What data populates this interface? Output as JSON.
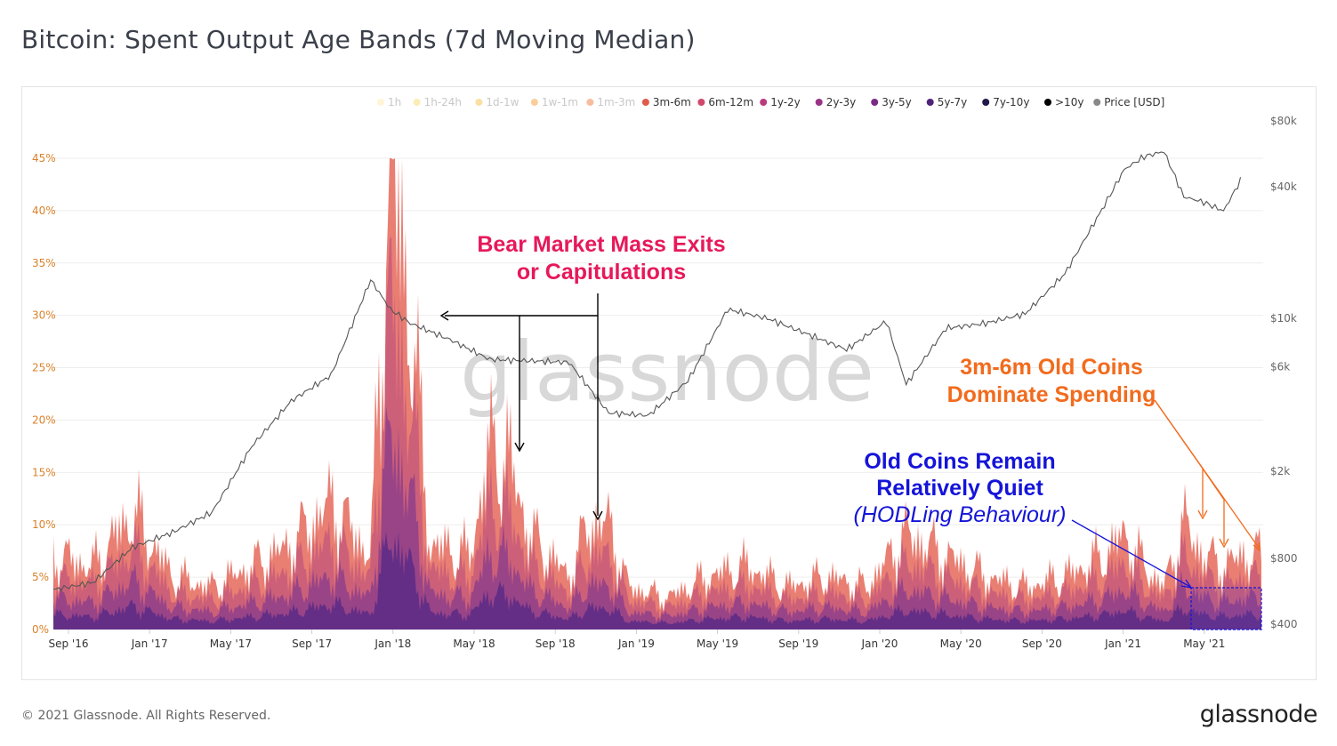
{
  "title": "Bitcoin: Spent Output Age Bands (7d Moving Median)",
  "footer": {
    "copyright": "© 2021 Glassnode. All Rights Reserved.",
    "brand": "glassnode"
  },
  "watermark": "glassnode",
  "colors": {
    "price_line": "#555555",
    "red_annotation": "#e6195a",
    "orange_annotation": "#f26b1d",
    "blue_annotation": "#1414d9",
    "left_tick": "#d9822b",
    "right_tick": "#666666",
    "area_outer": "#e8776a",
    "area_mid": "#c85a7a",
    "area_inner": "#8f3f8a",
    "area_core": "#5a2a86"
  },
  "annotations": {
    "bear_line1": "Bear Market Mass Exits",
    "bear_line2": "or Capitulations",
    "orange_line1": "3m-6m Old Coins",
    "orange_line2": "Dominate Spending",
    "blue_line1": "Old Coins Remain",
    "blue_line2": "Relatively Quiet",
    "blue_line3": "(HODLing Behaviour)"
  },
  "chart_data": {
    "type": "area",
    "title": "Bitcoin: Spent Output Age Bands (7d Moving Median)",
    "legend_position": "top-right",
    "legend": [
      {
        "label": "1h",
        "color": "#fde9a6",
        "faded": true
      },
      {
        "label": "1h-24h",
        "color": "#f7d75a",
        "faded": true
      },
      {
        "label": "1d-1w",
        "color": "#f6b733",
        "faded": true
      },
      {
        "label": "1w-1m",
        "color": "#f4921f",
        "faded": true
      },
      {
        "label": "1m-3m",
        "color": "#ec6e2a",
        "faded": true
      },
      {
        "label": "3m-6m",
        "color": "#e05a4a",
        "faded": false
      },
      {
        "label": "6m-12m",
        "color": "#d0486a",
        "faded": false
      },
      {
        "label": "1y-2y",
        "color": "#b83b7d",
        "faded": false
      },
      {
        "label": "2y-3y",
        "color": "#9a3386",
        "faded": false
      },
      {
        "label": "3y-5y",
        "color": "#7a2a86",
        "faded": false
      },
      {
        "label": "5y-7y",
        "color": "#4f2378",
        "faded": false
      },
      {
        "label": "7y-10y",
        "color": "#22184a",
        "faded": false
      },
      {
        "label": ">10y",
        "color": "#000000",
        "faded": false
      },
      {
        "label": "Price [USD]",
        "color": "#888888",
        "faded": false
      }
    ],
    "x_ticks": [
      "Sep '16",
      "Jan '17",
      "May '17",
      "Sep '17",
      "Jan '18",
      "May '18",
      "Sep '18",
      "Jan '19",
      "May '19",
      "Sep '19",
      "Jan '20",
      "May '20",
      "Sep '20",
      "Jan '21",
      "May '21"
    ],
    "y_left_ticks": [
      "0%",
      "5%",
      "10%",
      "15%",
      "20%",
      "25%",
      "30%",
      "35%",
      "40%",
      "45%"
    ],
    "y_left_range": [
      0,
      45
    ],
    "y_right_ticks": [
      "$400",
      "$800",
      "$2k",
      "$6k",
      "$10k",
      "$40k",
      "$80k"
    ],
    "y_right_scale": "log",
    "grid": true,
    "spent_share_pct": [
      {
        "date": "2016-08",
        "value": 7
      },
      {
        "date": "2016-10",
        "value": 6
      },
      {
        "date": "2016-12",
        "value": 11
      },
      {
        "date": "2017-02",
        "value": 5
      },
      {
        "date": "2017-04",
        "value": 4
      },
      {
        "date": "2017-06",
        "value": 6
      },
      {
        "date": "2017-08",
        "value": 8
      },
      {
        "date": "2017-10",
        "value": 12
      },
      {
        "date": "2017-12",
        "value": 7
      },
      {
        "date": "2018-01",
        "value": 45
      },
      {
        "date": "2018-02",
        "value": 30
      },
      {
        "date": "2018-03",
        "value": 8
      },
      {
        "date": "2018-05",
        "value": 7
      },
      {
        "date": "2018-06",
        "value": 17
      },
      {
        "date": "2018-07",
        "value": 16
      },
      {
        "date": "2018-08",
        "value": 9
      },
      {
        "date": "2018-10",
        "value": 5
      },
      {
        "date": "2018-11",
        "value": 10
      },
      {
        "date": "2018-12",
        "value": 10
      },
      {
        "date": "2019-01",
        "value": 4
      },
      {
        "date": "2019-03",
        "value": 3
      },
      {
        "date": "2019-05",
        "value": 5
      },
      {
        "date": "2019-07",
        "value": 6
      },
      {
        "date": "2019-09",
        "value": 4
      },
      {
        "date": "2019-11",
        "value": 5
      },
      {
        "date": "2020-01",
        "value": 4
      },
      {
        "date": "2020-03",
        "value": 9
      },
      {
        "date": "2020-05",
        "value": 7
      },
      {
        "date": "2020-07",
        "value": 5
      },
      {
        "date": "2020-09",
        "value": 4
      },
      {
        "date": "2020-11",
        "value": 5
      },
      {
        "date": "2021-01",
        "value": 7
      },
      {
        "date": "2021-02",
        "value": 9
      },
      {
        "date": "2021-03",
        "value": 6
      },
      {
        "date": "2021-04",
        "value": 4
      },
      {
        "date": "2021-05",
        "value": 10
      },
      {
        "date": "2021-06",
        "value": 7
      },
      {
        "date": "2021-07",
        "value": 6
      },
      {
        "date": "2021-08",
        "value": 7
      }
    ],
    "price_usd": [
      {
        "date": "2016-08",
        "value": 575
      },
      {
        "date": "2016-10",
        "value": 620
      },
      {
        "date": "2016-12",
        "value": 900
      },
      {
        "date": "2017-02",
        "value": 1050
      },
      {
        "date": "2017-04",
        "value": 1300
      },
      {
        "date": "2017-06",
        "value": 2600
      },
      {
        "date": "2017-08",
        "value": 4200
      },
      {
        "date": "2017-10",
        "value": 5500
      },
      {
        "date": "2017-12",
        "value": 15000
      },
      {
        "date": "2018-01",
        "value": 11000
      },
      {
        "date": "2018-02",
        "value": 9500
      },
      {
        "date": "2018-04",
        "value": 8000
      },
      {
        "date": "2018-06",
        "value": 6500
      },
      {
        "date": "2018-08",
        "value": 6400
      },
      {
        "date": "2018-10",
        "value": 6300
      },
      {
        "date": "2018-12",
        "value": 3700
      },
      {
        "date": "2019-02",
        "value": 3600
      },
      {
        "date": "2019-04",
        "value": 5200
      },
      {
        "date": "2019-06",
        "value": 11000
      },
      {
        "date": "2019-08",
        "value": 10000
      },
      {
        "date": "2019-10",
        "value": 8500
      },
      {
        "date": "2019-12",
        "value": 7200
      },
      {
        "date": "2020-02",
        "value": 9700
      },
      {
        "date": "2020-03",
        "value": 5000
      },
      {
        "date": "2020-05",
        "value": 9000
      },
      {
        "date": "2020-07",
        "value": 9500
      },
      {
        "date": "2020-09",
        "value": 10500
      },
      {
        "date": "2020-11",
        "value": 16000
      },
      {
        "date": "2021-01",
        "value": 33000
      },
      {
        "date": "2021-02",
        "value": 48000
      },
      {
        "date": "2021-03",
        "value": 55000
      },
      {
        "date": "2021-04",
        "value": 58000
      },
      {
        "date": "2021-05",
        "value": 36000
      },
      {
        "date": "2021-06",
        "value": 34000
      },
      {
        "date": "2021-07",
        "value": 31000
      },
      {
        "date": "2021-08",
        "value": 45000
      }
    ]
  }
}
